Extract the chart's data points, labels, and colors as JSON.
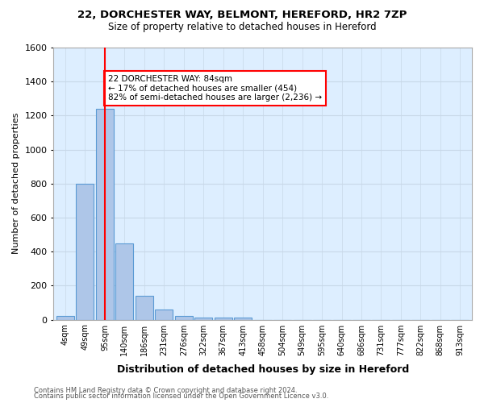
{
  "title1": "22, DORCHESTER WAY, BELMONT, HEREFORD, HR2 7ZP",
  "title2": "Size of property relative to detached houses in Hereford",
  "xlabel": "Distribution of detached houses by size in Hereford",
  "ylabel": "Number of detached properties",
  "footnote1": "Contains HM Land Registry data © Crown copyright and database right 2024.",
  "footnote2": "Contains public sector information licensed under the Open Government Licence v3.0.",
  "annotation_line1": "22 DORCHESTER WAY: 84sqm",
  "annotation_line2": "← 17% of detached houses are smaller (454)",
  "annotation_line3": "82% of semi-detached houses are larger (2,236) →",
  "bar_values": [
    20,
    800,
    1240,
    450,
    140,
    60,
    20,
    10,
    10,
    10,
    0,
    0,
    0,
    0,
    0,
    0,
    0,
    0,
    0,
    0,
    0
  ],
  "categories": [
    "4sqm",
    "49sqm",
    "95sqm",
    "140sqm",
    "186sqm",
    "231sqm",
    "276sqm",
    "322sqm",
    "367sqm",
    "413sqm",
    "458sqm",
    "504sqm",
    "549sqm",
    "595sqm",
    "640sqm",
    "686sqm",
    "731sqm",
    "777sqm",
    "822sqm",
    "868sqm",
    "913sqm"
  ],
  "bar_color": "#aec6e8",
  "bar_edge_color": "#5b9bd5",
  "red_line_x": 2.0,
  "ylim": [
    0,
    1600
  ],
  "yticks": [
    0,
    200,
    400,
    600,
    800,
    1000,
    1200,
    1400,
    1600
  ],
  "bg_color": "#ffffff",
  "grid_color": "#c8d8e8",
  "ax_bg_color": "#ddeeff"
}
